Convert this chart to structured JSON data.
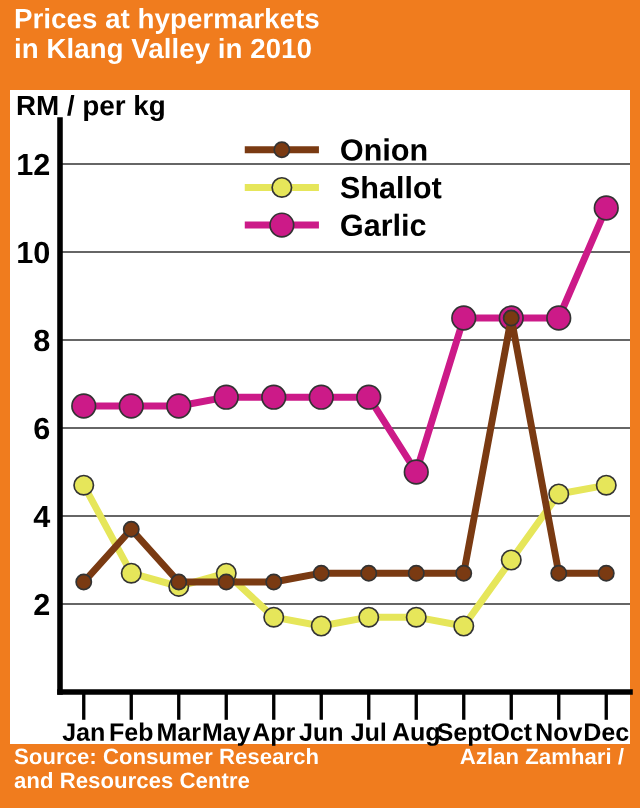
{
  "chart_data": {
    "type": "line",
    "title": "Prices at hypermarkets\nin Klang Valley in 2010",
    "ylabel": "RM / per kg",
    "categories": [
      "Jan",
      "Feb",
      "Mar",
      "May",
      "Apr",
      "Jun",
      "Jul",
      "Aug",
      "Sept",
      "Oct",
      "Nov",
      "Dec"
    ],
    "series": [
      {
        "name": "Onion",
        "color": "#7a3a12",
        "values": [
          2.5,
          3.7,
          2.5,
          2.5,
          2.5,
          2.7,
          2.7,
          2.7,
          2.7,
          8.5,
          2.7,
          2.7
        ]
      },
      {
        "name": "Shallot",
        "color": "#e6e65a",
        "values": [
          4.7,
          2.7,
          2.4,
          2.7,
          1.7,
          1.5,
          1.7,
          1.7,
          1.5,
          3.0,
          4.5,
          4.7
        ]
      },
      {
        "name": "Garlic",
        "color": "#cc1a88",
        "values": [
          6.5,
          6.5,
          6.5,
          6.7,
          6.7,
          6.7,
          6.7,
          5.0,
          8.5,
          8.5,
          8.5,
          11
        ]
      }
    ],
    "ylim": [
      0,
      13
    ],
    "yticks": [
      {
        "value": 0,
        "label": null
      },
      2,
      4,
      6,
      8,
      10,
      12
    ],
    "grid": "y",
    "legend": "top",
    "marker": "circle",
    "line_style": "solid",
    "annotations": [
      "Source: Consumer Research\nand Resources Centre",
      "Azlan Zamhari /"
    ]
  }
}
